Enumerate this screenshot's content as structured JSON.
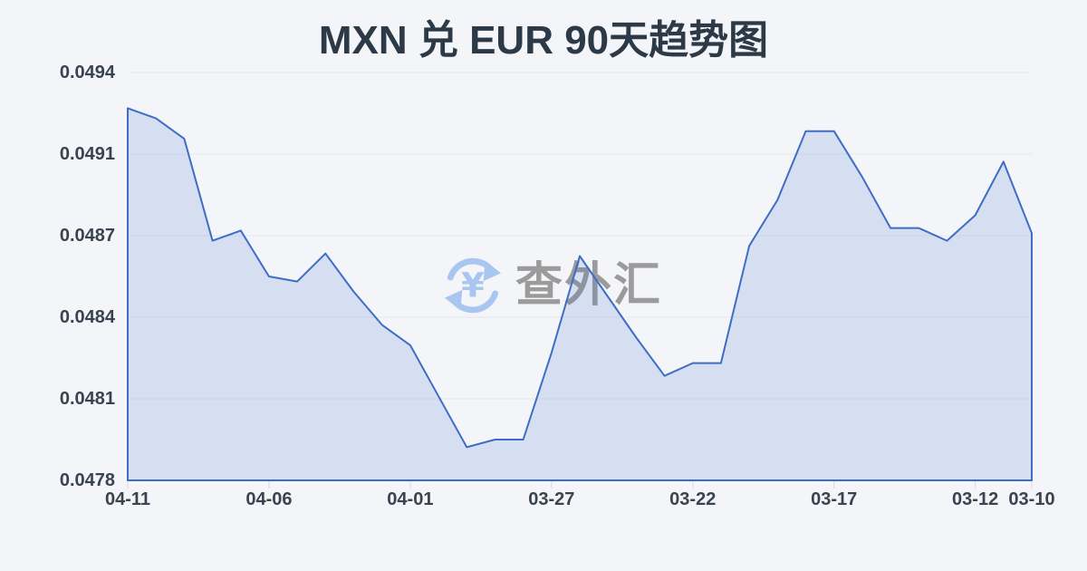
{
  "page": {
    "title": "MXN 兑 EUR 90天趋势图"
  },
  "watermark": {
    "icon": "currency-exchange-icon",
    "text": "查外汇"
  },
  "chart_data": {
    "type": "area",
    "title": "MXN 兑 EUR 90天趋势图",
    "x": [
      "04-11",
      "04-10",
      "04-09",
      "04-08",
      "04-07",
      "04-06",
      "04-05",
      "04-04",
      "04-03",
      "04-02",
      "04-01",
      "03-31",
      "03-30",
      "03-29",
      "03-28",
      "03-27",
      "03-26",
      "03-25",
      "03-24",
      "03-23",
      "03-22",
      "03-21",
      "03-20",
      "03-19",
      "03-18",
      "03-17",
      "03-16",
      "03-15",
      "03-14",
      "03-13",
      "03-12",
      "03-11",
      "03-10"
    ],
    "values": [
      0.04926,
      0.04922,
      0.04914,
      0.04874,
      0.04878,
      0.0486,
      0.04858,
      0.04869,
      0.04854,
      0.04841,
      0.04833,
      0.04813,
      0.04793,
      0.04796,
      0.04796,
      0.0483,
      0.04868,
      0.04852,
      0.04836,
      0.04821,
      0.04826,
      0.04826,
      0.04872,
      0.0489,
      0.04917,
      0.04917,
      0.04899,
      0.04879,
      0.04879,
      0.04874,
      0.04884,
      0.04905,
      0.04877
    ],
    "x_tick_labels": [
      "04-11",
      "04-06",
      "04-01",
      "03-27",
      "03-22",
      "03-17",
      "03-12",
      "03-10"
    ],
    "x_tick_indices": [
      0,
      5,
      10,
      15,
      20,
      25,
      30,
      32
    ],
    "y_tick_labels": [
      "0.0494",
      "0.0491",
      "0.0487",
      "0.0484",
      "0.0481",
      "0.0478"
    ],
    "ylim": [
      0.0478,
      0.0494
    ],
    "xlabel": "",
    "ylabel": "",
    "grid": "horizontal",
    "legend": "none",
    "colors": {
      "line": "#3e6dc5",
      "fill_rgba": "rgba(62,109,197,0.16)",
      "grid": "#e5e7ec",
      "tick": "#d6d9e0",
      "title_text": "#2c3947",
      "axis_text": "#3a4350",
      "watermark_icon": "#a9c6f1",
      "watermark_text": "#9b9b9b",
      "page_bg": "#f4f5f9"
    }
  }
}
